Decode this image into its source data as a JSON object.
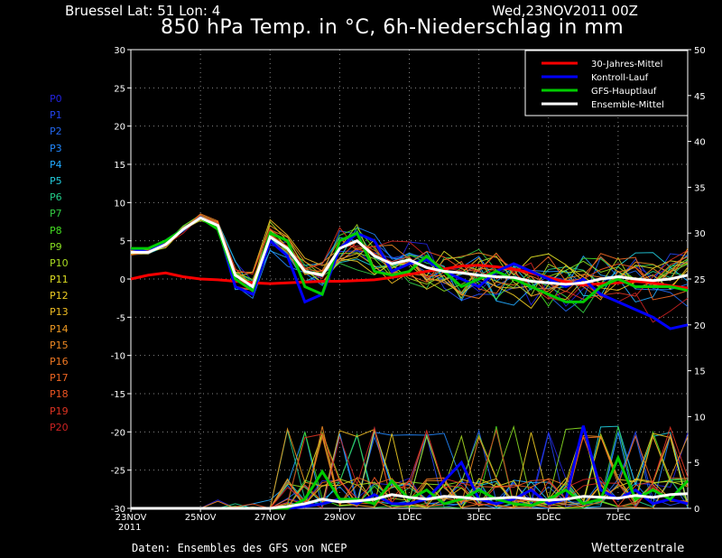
{
  "header": {
    "location": "Bruessel   Lat: 51  Lon: 4",
    "run": "Wed,23NOV2011 00Z",
    "title": "850 hPa Temp. in °C, 6h-Niederschlag in mm"
  },
  "footer": {
    "source": "Daten: Ensembles des GFS von NCEP",
    "brand": "Wetterzentrale"
  },
  "members": [
    {
      "label": "P0",
      "color": "#2222dd"
    },
    {
      "label": "P1",
      "color": "#2244ee"
    },
    {
      "label": "P2",
      "color": "#2266ee"
    },
    {
      "label": "P3",
      "color": "#2288ff"
    },
    {
      "label": "P4",
      "color": "#22aaff"
    },
    {
      "label": "P5",
      "color": "#22ccdd"
    },
    {
      "label": "P6",
      "color": "#22cc88"
    },
    {
      "label": "P7",
      "color": "#33cc44"
    },
    {
      "label": "P8",
      "color": "#44dd22"
    },
    {
      "label": "P9",
      "color": "#88dd22"
    },
    {
      "label": "P10",
      "color": "#aadd22"
    },
    {
      "label": "P11",
      "color": "#dddd22"
    },
    {
      "label": "P12",
      "color": "#eecc22"
    },
    {
      "label": "P13",
      "color": "#eebb22"
    },
    {
      "label": "P14",
      "color": "#ee9922"
    },
    {
      "label": "P15",
      "color": "#ee8822"
    },
    {
      "label": "P16",
      "color": "#ee7722"
    },
    {
      "label": "P17",
      "color": "#ee6622"
    },
    {
      "label": "P18",
      "color": "#ee5522"
    },
    {
      "label": "P19",
      "color": "#dd3322"
    },
    {
      "label": "P20",
      "color": "#cc2222"
    }
  ],
  "chart_data": {
    "type": "line",
    "title": "850 hPa Temp. in °C, 6h-Niederschlag in mm",
    "x_ticks": [
      "23NOV\n2011",
      "25NOV",
      "27NOV",
      "29NOV",
      "1DEC",
      "3DEC",
      "5DEC",
      "7DEC"
    ],
    "x_range_days": [
      0,
      16
    ],
    "y_left": {
      "min": -30,
      "max": 30,
      "ticks": [
        30,
        25,
        20,
        15,
        10,
        5,
        0,
        -5,
        -10,
        -15,
        -20,
        -25,
        -30
      ]
    },
    "y_right": {
      "min": 0,
      "max": 50,
      "ticks": [
        50,
        45,
        40,
        35,
        30,
        25,
        20,
        15,
        10,
        5,
        0
      ]
    },
    "grid": true,
    "legend": {
      "placement": "top-right",
      "entries": [
        {
          "label": "30-Jahres-Mittel",
          "color": "#ff0000"
        },
        {
          "label": "Kontroll-Lauf",
          "color": "#0000ff"
        },
        {
          "label": "GFS-Hauptlauf",
          "color": "#00cc00"
        },
        {
          "label": "Ensemble-Mittel",
          "color": "#ffffff"
        }
      ]
    },
    "x_values": [
      0,
      0.5,
      1,
      1.5,
      2,
      2.5,
      3,
      3.5,
      4,
      4.5,
      5,
      5.5,
      6,
      6.5,
      7,
      7.5,
      8,
      8.5,
      9,
      9.5,
      10,
      10.5,
      11,
      11.5,
      12,
      12.5,
      13,
      13.5,
      14,
      14.5,
      15,
      15.5,
      16
    ],
    "temperature_series": [
      {
        "name": "30-Jahres-Mittel",
        "axis": "left",
        "values": [
          0,
          0.5,
          0.8,
          0.3,
          0,
          -0.1,
          -0.3,
          -0.5,
          -0.6,
          -0.5,
          -0.4,
          -0.3,
          -0.3,
          -0.2,
          -0.1,
          0.2,
          0.6,
          1.0,
          1.3,
          1.7,
          1.8,
          1.6,
          1.3,
          0.8,
          0.2,
          -0.4,
          -0.8,
          -0.6,
          -0.5,
          -0.3,
          -0.5,
          -0.9,
          -1.2
        ]
      },
      {
        "name": "Kontroll-Lauf",
        "axis": "left",
        "values": [
          4,
          3.5,
          5,
          6.5,
          8,
          7,
          -1,
          -2,
          5,
          3,
          -3,
          -2,
          4,
          6,
          5,
          1,
          2,
          2.5,
          1,
          0,
          -1,
          1,
          2,
          1,
          0,
          -1,
          0,
          -2,
          -3,
          -4,
          -5,
          -6.5,
          -6
        ]
      },
      {
        "name": "GFS-Hauptlauf",
        "axis": "left",
        "values": [
          4,
          4,
          5,
          6.5,
          8,
          6.5,
          0,
          -1.5,
          6,
          5,
          -1,
          -2,
          5,
          6,
          1,
          0.5,
          1,
          3,
          1,
          -1,
          0,
          1,
          0,
          -1,
          -2,
          -3,
          -3,
          -1,
          0,
          -1,
          -1,
          -1,
          -1.5
        ]
      },
      {
        "name": "Ensemble-Mittel",
        "axis": "left",
        "values": [
          3.5,
          3.5,
          4.5,
          6.5,
          8,
          7,
          0.5,
          -1,
          5.5,
          4,
          1,
          0.5,
          4,
          5,
          3,
          2,
          2.5,
          1.5,
          1,
          0.8,
          0.5,
          0.3,
          0.2,
          -0.3,
          -0.5,
          -0.7,
          -0.5,
          0,
          0.3,
          0,
          -0.2,
          0,
          0.5
        ]
      }
    ],
    "precipitation_series": [
      {
        "name": "Kontroll-Lauf",
        "axis": "right",
        "values": [
          0,
          0,
          0,
          0,
          0,
          0,
          0,
          0,
          0,
          0,
          0.2,
          0.5,
          1,
          0.5,
          1.5,
          0.5,
          0.5,
          1,
          3,
          5,
          1,
          0.5,
          1,
          2,
          0.5,
          1,
          9,
          2,
          1,
          2,
          0.5,
          1,
          0.5
        ]
      },
      {
        "name": "GFS-Hauptlauf",
        "axis": "right",
        "values": [
          0,
          0,
          0,
          0,
          0,
          0,
          0,
          0,
          0,
          0,
          1,
          4,
          1,
          1,
          0.5,
          3,
          1,
          2,
          0.5,
          1,
          2,
          1,
          0.5,
          0.3,
          1,
          2,
          0.5,
          1,
          5.5,
          1,
          2,
          1,
          3
        ]
      },
      {
        "name": "Ensemble-Mittel",
        "axis": "right",
        "values": [
          0,
          0,
          0,
          0,
          0,
          0,
          0,
          0,
          0,
          0.2,
          0.5,
          1,
          0.7,
          0.8,
          1,
          1.5,
          1.2,
          1,
          1.3,
          1.2,
          1,
          1.1,
          1.2,
          1,
          0.9,
          1,
          1.3,
          1.2,
          1.1,
          1.4,
          1.2,
          1.5,
          1.6
        ]
      }
    ]
  }
}
